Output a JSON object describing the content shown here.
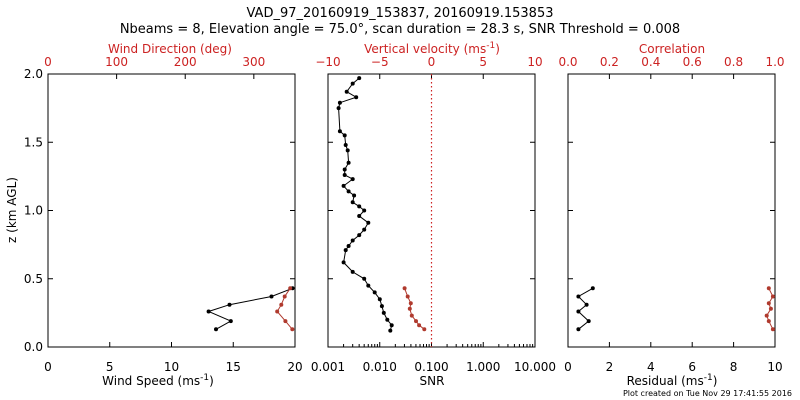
{
  "title_line1": "VAD_97_20160919_153837, 20160919.153853",
  "title_line2": "Nbeams = 8, Elevation angle = 75.0°, scan duration = 28.3 s, SNR Threshold = 0.008",
  "footer": "Plot created on Tue Nov 29 17:41:55 2016",
  "colors": {
    "black": "#000000",
    "red": "#cc2222",
    "brown": "#b03a2e",
    "dotted": "#cc2222"
  },
  "chart_data": [
    {
      "type": "line",
      "panel": "wind",
      "ylabel": "z (km AGL)",
      "ylim": [
        0,
        2.0
      ],
      "yticks": [
        0.0,
        0.5,
        1.0,
        1.5,
        2.0
      ],
      "ytick_labels": [
        "0.0",
        "0.5",
        "1.0",
        "1.5",
        "2.0"
      ],
      "xlabel": "Wind Speed (ms",
      "xlabel_sup": "-1",
      "xlabel_tail": ")",
      "xlim": [
        0,
        20
      ],
      "xticks": [
        0,
        5,
        10,
        15,
        20
      ],
      "xtick_labels": [
        "0",
        "5",
        "10",
        "15",
        "20"
      ],
      "top_label": "Wind Direction (deg)",
      "top_xlim": [
        0,
        360
      ],
      "top_ticks": [
        0,
        100,
        200,
        300
      ],
      "top_tick_labels": [
        "0",
        "100",
        "200",
        "300"
      ],
      "series": [
        {
          "role": "wind_speed",
          "axis": "bottom",
          "x": [
            13.6,
            14.8,
            13.0,
            14.7,
            18.1,
            19.8
          ],
          "y": [
            0.13,
            0.19,
            0.26,
            0.31,
            0.37,
            0.43
          ]
        },
        {
          "role": "wind_direction",
          "axis": "top",
          "x": [
            356,
            346,
            334,
            340,
            345,
            353
          ],
          "y": [
            0.13,
            0.19,
            0.26,
            0.31,
            0.37,
            0.43
          ]
        }
      ]
    },
    {
      "type": "line",
      "panel": "snr",
      "xlabel": "SNR",
      "xscale": "log",
      "xlim": [
        0.001,
        10
      ],
      "xticks": [
        0.001,
        0.01,
        0.1,
        1,
        10
      ],
      "xtick_labels": [
        "0.001",
        "0.010",
        "0.100",
        "1.000",
        "10.000"
      ],
      "top_label": "Vertical velocity (ms",
      "top_label_sup": "-1",
      "top_label_tail": ")",
      "top_xlim": [
        -10,
        10
      ],
      "top_ticks": [
        -10,
        -5,
        0,
        5,
        10
      ],
      "top_tick_labels": [
        "−10",
        "−5",
        "0",
        "5",
        "10"
      ],
      "reference_line_x": 0.1,
      "series": [
        {
          "role": "snr",
          "axis": "bottom",
          "x": [
            0.016,
            0.017,
            0.014,
            0.012,
            0.011,
            0.01,
            0.008,
            0.006,
            0.005,
            0.003,
            0.002,
            0.0022,
            0.0025,
            0.003,
            0.004,
            0.005,
            0.006,
            0.004,
            0.005,
            0.004,
            0.003,
            0.0032,
            0.0025,
            0.002,
            0.003,
            0.0021,
            0.0021,
            0.0025,
            0.0024,
            0.0022,
            0.0021,
            0.0017,
            0.0016,
            0.0017,
            0.0035,
            0.0023,
            0.003,
            0.004
          ],
          "y": [
            0.12,
            0.16,
            0.2,
            0.25,
            0.3,
            0.35,
            0.4,
            0.45,
            0.5,
            0.55,
            0.62,
            0.71,
            0.74,
            0.78,
            0.82,
            0.86,
            0.91,
            0.96,
            1.0,
            1.03,
            1.06,
            1.11,
            1.14,
            1.18,
            1.23,
            1.26,
            1.3,
            1.35,
            1.44,
            1.48,
            1.55,
            1.58,
            1.75,
            1.79,
            1.83,
            1.87,
            1.93,
            1.97
          ]
        },
        {
          "role": "vertical_velocity",
          "axis": "top",
          "x": [
            -0.7,
            -1.2,
            -1.5,
            -1.9,
            -2.1,
            -2.0,
            -2.3,
            -2.6
          ],
          "y": [
            0.13,
            0.16,
            0.19,
            0.23,
            0.28,
            0.32,
            0.37,
            0.43
          ]
        }
      ]
    },
    {
      "type": "line",
      "panel": "residual",
      "xlabel": "Residual (ms",
      "xlabel_sup": "-1",
      "xlabel_tail": ")",
      "xlim": [
        0,
        10
      ],
      "xticks": [
        0,
        2,
        4,
        6,
        8,
        10
      ],
      "xtick_labels": [
        "0",
        "2",
        "4",
        "6",
        "8",
        "10"
      ],
      "top_label": "Correlation",
      "top_xlim": [
        0,
        1.0
      ],
      "top_ticks": [
        0,
        0.2,
        0.4,
        0.6,
        0.8,
        1.0
      ],
      "top_tick_labels": [
        "0.0",
        "0.2",
        "0.4",
        "0.6",
        "0.8",
        "1.0"
      ],
      "series": [
        {
          "role": "residual",
          "axis": "bottom",
          "x": [
            0.5,
            1.0,
            0.5,
            0.9,
            0.5,
            1.2
          ],
          "y": [
            0.13,
            0.19,
            0.26,
            0.31,
            0.37,
            0.43
          ]
        },
        {
          "role": "correlation",
          "axis": "top",
          "x": [
            0.99,
            0.97,
            0.96,
            0.98,
            0.97,
            0.99,
            0.97
          ],
          "y": [
            0.13,
            0.19,
            0.23,
            0.28,
            0.32,
            0.37,
            0.43
          ]
        }
      ]
    }
  ]
}
